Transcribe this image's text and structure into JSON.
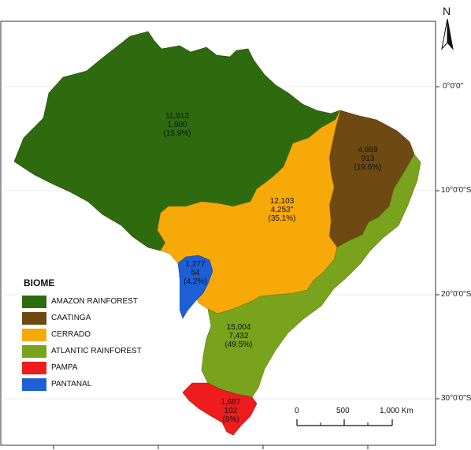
{
  "north": "N",
  "latitudes": [
    "0°0'0\"",
    "10°0'0\"S",
    "20°0'0\"S",
    "30°0'0\"S"
  ],
  "legend": {
    "title": "BIOME",
    "items": [
      {
        "label": "AMAZON RAINFOREST",
        "color": "#2e6b0e"
      },
      {
        "label": "CAATINGA",
        "color": "#6e4a12"
      },
      {
        "label": "CERRADO",
        "color": "#f8a90a"
      },
      {
        "label": "ATLANTIC RAINFOREST",
        "color": "#79a31c"
      },
      {
        "label": "PAMPA",
        "color": "#ee1c1c"
      },
      {
        "label": "PANTANAL",
        "color": "#1e5fd6"
      }
    ]
  },
  "regions": [
    {
      "line1": "11,912",
      "line2": "1,900",
      "line3": "(15.9%)"
    },
    {
      "line1": "4,659",
      "line2": "913",
      "line3": "(19.6%)"
    },
    {
      "line1": "12,103",
      "line2": "4,253\"",
      "line3": "(35.1%)"
    },
    {
      "line1": "1,277",
      "line2": "54",
      "line3": "(4.2%)"
    },
    {
      "line1": "15,004",
      "line2": "7,432",
      "line3": "(49.5%)"
    },
    {
      "line1": "1,687",
      "line2": "102",
      "line3": "(6%)"
    }
  ],
  "scale": {
    "ticks": [
      "0",
      "500",
      "1,000 Km"
    ]
  }
}
